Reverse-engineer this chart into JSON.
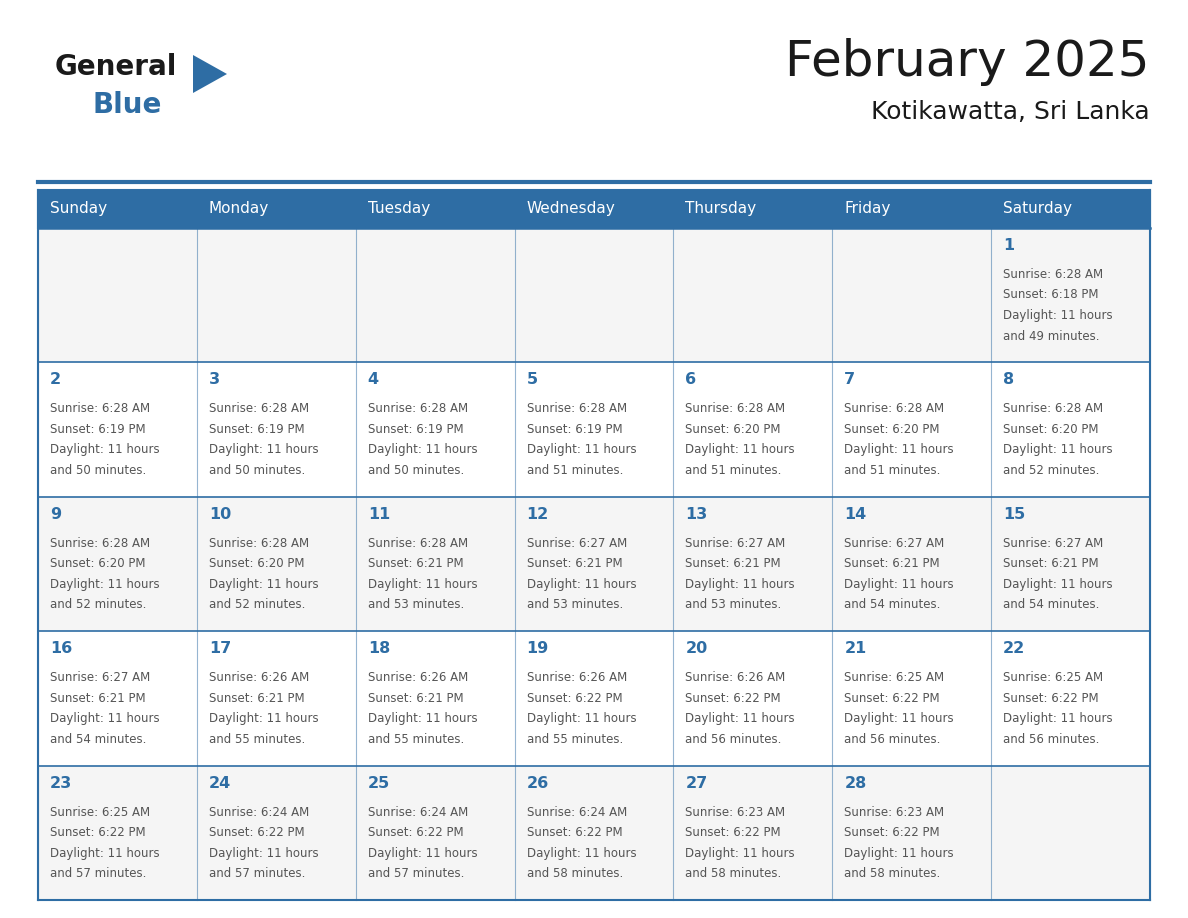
{
  "title": "February 2025",
  "subtitle": "Kotikawatta, Sri Lanka",
  "days_of_week": [
    "Sunday",
    "Monday",
    "Tuesday",
    "Wednesday",
    "Thursday",
    "Friday",
    "Saturday"
  ],
  "header_bg": "#2E6DA4",
  "header_text": "#FFFFFF",
  "cell_bg_odd": "#F0F4F8",
  "cell_bg_even": "#FFFFFF",
  "border_color": "#2E6DA4",
  "text_color": "#555555",
  "day_num_color": "#2E6DA4",
  "logo_general_color": "#1a1a1a",
  "logo_blue_color": "#2E6DA4",
  "calendar_data": [
    [
      null,
      null,
      null,
      null,
      null,
      null,
      {
        "day": 1,
        "sunrise": "6:28 AM",
        "sunset": "6:18 PM",
        "daylight_line1": "Daylight: 11 hours",
        "daylight_line2": "and 49 minutes."
      }
    ],
    [
      {
        "day": 2,
        "sunrise": "6:28 AM",
        "sunset": "6:19 PM",
        "daylight_line1": "Daylight: 11 hours",
        "daylight_line2": "and 50 minutes."
      },
      {
        "day": 3,
        "sunrise": "6:28 AM",
        "sunset": "6:19 PM",
        "daylight_line1": "Daylight: 11 hours",
        "daylight_line2": "and 50 minutes."
      },
      {
        "day": 4,
        "sunrise": "6:28 AM",
        "sunset": "6:19 PM",
        "daylight_line1": "Daylight: 11 hours",
        "daylight_line2": "and 50 minutes."
      },
      {
        "day": 5,
        "sunrise": "6:28 AM",
        "sunset": "6:19 PM",
        "daylight_line1": "Daylight: 11 hours",
        "daylight_line2": "and 51 minutes."
      },
      {
        "day": 6,
        "sunrise": "6:28 AM",
        "sunset": "6:20 PM",
        "daylight_line1": "Daylight: 11 hours",
        "daylight_line2": "and 51 minutes."
      },
      {
        "day": 7,
        "sunrise": "6:28 AM",
        "sunset": "6:20 PM",
        "daylight_line1": "Daylight: 11 hours",
        "daylight_line2": "and 51 minutes."
      },
      {
        "day": 8,
        "sunrise": "6:28 AM",
        "sunset": "6:20 PM",
        "daylight_line1": "Daylight: 11 hours",
        "daylight_line2": "and 52 minutes."
      }
    ],
    [
      {
        "day": 9,
        "sunrise": "6:28 AM",
        "sunset": "6:20 PM",
        "daylight_line1": "Daylight: 11 hours",
        "daylight_line2": "and 52 minutes."
      },
      {
        "day": 10,
        "sunrise": "6:28 AM",
        "sunset": "6:20 PM",
        "daylight_line1": "Daylight: 11 hours",
        "daylight_line2": "and 52 minutes."
      },
      {
        "day": 11,
        "sunrise": "6:28 AM",
        "sunset": "6:21 PM",
        "daylight_line1": "Daylight: 11 hours",
        "daylight_line2": "and 53 minutes."
      },
      {
        "day": 12,
        "sunrise": "6:27 AM",
        "sunset": "6:21 PM",
        "daylight_line1": "Daylight: 11 hours",
        "daylight_line2": "and 53 minutes."
      },
      {
        "day": 13,
        "sunrise": "6:27 AM",
        "sunset": "6:21 PM",
        "daylight_line1": "Daylight: 11 hours",
        "daylight_line2": "and 53 minutes."
      },
      {
        "day": 14,
        "sunrise": "6:27 AM",
        "sunset": "6:21 PM",
        "daylight_line1": "Daylight: 11 hours",
        "daylight_line2": "and 54 minutes."
      },
      {
        "day": 15,
        "sunrise": "6:27 AM",
        "sunset": "6:21 PM",
        "daylight_line1": "Daylight: 11 hours",
        "daylight_line2": "and 54 minutes."
      }
    ],
    [
      {
        "day": 16,
        "sunrise": "6:27 AM",
        "sunset": "6:21 PM",
        "daylight_line1": "Daylight: 11 hours",
        "daylight_line2": "and 54 minutes."
      },
      {
        "day": 17,
        "sunrise": "6:26 AM",
        "sunset": "6:21 PM",
        "daylight_line1": "Daylight: 11 hours",
        "daylight_line2": "and 55 minutes."
      },
      {
        "day": 18,
        "sunrise": "6:26 AM",
        "sunset": "6:21 PM",
        "daylight_line1": "Daylight: 11 hours",
        "daylight_line2": "and 55 minutes."
      },
      {
        "day": 19,
        "sunrise": "6:26 AM",
        "sunset": "6:22 PM",
        "daylight_line1": "Daylight: 11 hours",
        "daylight_line2": "and 55 minutes."
      },
      {
        "day": 20,
        "sunrise": "6:26 AM",
        "sunset": "6:22 PM",
        "daylight_line1": "Daylight: 11 hours",
        "daylight_line2": "and 56 minutes."
      },
      {
        "day": 21,
        "sunrise": "6:25 AM",
        "sunset": "6:22 PM",
        "daylight_line1": "Daylight: 11 hours",
        "daylight_line2": "and 56 minutes."
      },
      {
        "day": 22,
        "sunrise": "6:25 AM",
        "sunset": "6:22 PM",
        "daylight_line1": "Daylight: 11 hours",
        "daylight_line2": "and 56 minutes."
      }
    ],
    [
      {
        "day": 23,
        "sunrise": "6:25 AM",
        "sunset": "6:22 PM",
        "daylight_line1": "Daylight: 11 hours",
        "daylight_line2": "and 57 minutes."
      },
      {
        "day": 24,
        "sunrise": "6:24 AM",
        "sunset": "6:22 PM",
        "daylight_line1": "Daylight: 11 hours",
        "daylight_line2": "and 57 minutes."
      },
      {
        "day": 25,
        "sunrise": "6:24 AM",
        "sunset": "6:22 PM",
        "daylight_line1": "Daylight: 11 hours",
        "daylight_line2": "and 57 minutes."
      },
      {
        "day": 26,
        "sunrise": "6:24 AM",
        "sunset": "6:22 PM",
        "daylight_line1": "Daylight: 11 hours",
        "daylight_line2": "and 58 minutes."
      },
      {
        "day": 27,
        "sunrise": "6:23 AM",
        "sunset": "6:22 PM",
        "daylight_line1": "Daylight: 11 hours",
        "daylight_line2": "and 58 minutes."
      },
      {
        "day": 28,
        "sunrise": "6:23 AM",
        "sunset": "6:22 PM",
        "daylight_line1": "Daylight: 11 hours",
        "daylight_line2": "and 58 minutes."
      },
      null
    ]
  ],
  "num_rows": 5,
  "num_cols": 7
}
